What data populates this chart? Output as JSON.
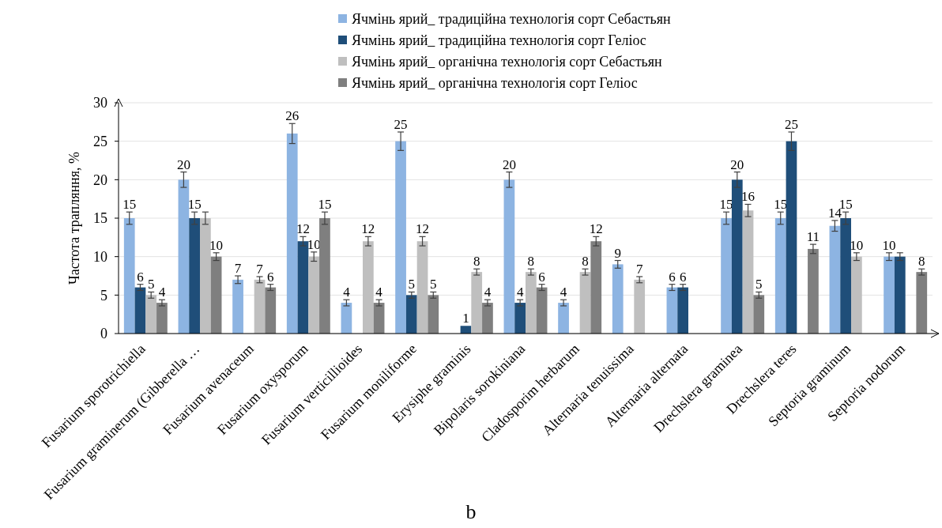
{
  "chart_data": {
    "type": "bar",
    "ylabel": "Частота трапляння, %",
    "ylim": [
      0,
      30
    ],
    "yticks": [
      0,
      5,
      10,
      15,
      20,
      25,
      30
    ],
    "grid": true,
    "legend": "top right",
    "annotations": [
      "b"
    ],
    "categories": [
      "Fusarium sporotrichiella",
      "Fusarium graminerum (Gibberella …",
      "Fusarium avenaceum",
      "Fusarium oxysporum",
      "Fusarium verticillioides",
      "Fusarium moniliforme",
      "Erysiphe graminis",
      "Bipolaris sorokiniana",
      "Cladosporim herbarum",
      "Alternaria tenuissima",
      "Alternaria  alternata",
      "Drechslera graminea",
      "Drechslera  teres",
      "Septoria graminum",
      "Septoria nodorum"
    ],
    "series": [
      {
        "name": "Ячмінь ярий_ традиційна технологія сорт Себастьян",
        "color": "#8db4e2",
        "values": [
          15,
          20,
          7,
          26,
          4,
          25,
          null,
          20,
          4,
          9,
          6,
          15,
          15,
          14,
          10
        ],
        "errors": [
          0.8,
          1,
          0.5,
          1.3,
          0.4,
          1.2,
          null,
          1,
          0.4,
          0.5,
          0.4,
          0.8,
          0.8,
          0.7,
          0.5
        ],
        "value_labels": [
          "15",
          "20",
          "7",
          "26",
          "4",
          "25",
          null,
          "20",
          "4",
          "9",
          "6",
          "15",
          "15",
          "14",
          "10"
        ]
      },
      {
        "name": "Ячмінь ярий_ традиційна технологія сорт Геліос",
        "color": "#1f4e79",
        "values": [
          6,
          15,
          null,
          12,
          null,
          5,
          1,
          4,
          null,
          null,
          6,
          20,
          25,
          15,
          10
        ],
        "errors": [
          0.4,
          0.8,
          null,
          0.6,
          null,
          0.4,
          null,
          0.4,
          null,
          null,
          0.4,
          1,
          1.2,
          0.8,
          0.5
        ],
        "value_labels": [
          "6",
          "15",
          null,
          "12",
          null,
          "5",
          "1",
          "4",
          null,
          null,
          "6",
          "20",
          "25",
          "15",
          null
        ]
      },
      {
        "name": "Ячмінь ярий_ органічна технологія сорт Себастьян",
        "color": "#bfbfbf",
        "values": [
          5,
          15,
          7,
          10,
          12,
          12,
          8,
          8,
          8,
          7,
          null,
          16,
          null,
          10,
          null
        ],
        "errors": [
          0.4,
          0.8,
          0.4,
          0.6,
          0.6,
          0.6,
          0.4,
          0.4,
          0.4,
          0.4,
          null,
          0.8,
          null,
          0.5,
          null
        ],
        "value_labels": [
          "5",
          null,
          "7",
          "10",
          "12",
          "12",
          "8",
          "8",
          "8",
          "7",
          null,
          "16",
          null,
          "10",
          null
        ]
      },
      {
        "name": "Ячмінь ярий_ органічна технологія сорт Геліос",
        "color": "#7f7f7f",
        "values": [
          4,
          10,
          6,
          15,
          4,
          5,
          4,
          6,
          12,
          null,
          null,
          5,
          11,
          null,
          8
        ],
        "errors": [
          0.4,
          0.5,
          0.4,
          0.8,
          0.4,
          0.4,
          0.4,
          0.4,
          0.6,
          null,
          null,
          0.4,
          0.6,
          null,
          0.4
        ],
        "value_labels": [
          "4",
          "10",
          "6",
          "15",
          "4",
          "5",
          "4",
          "6",
          "12",
          null,
          null,
          "5",
          "11",
          null,
          "8"
        ]
      }
    ]
  }
}
